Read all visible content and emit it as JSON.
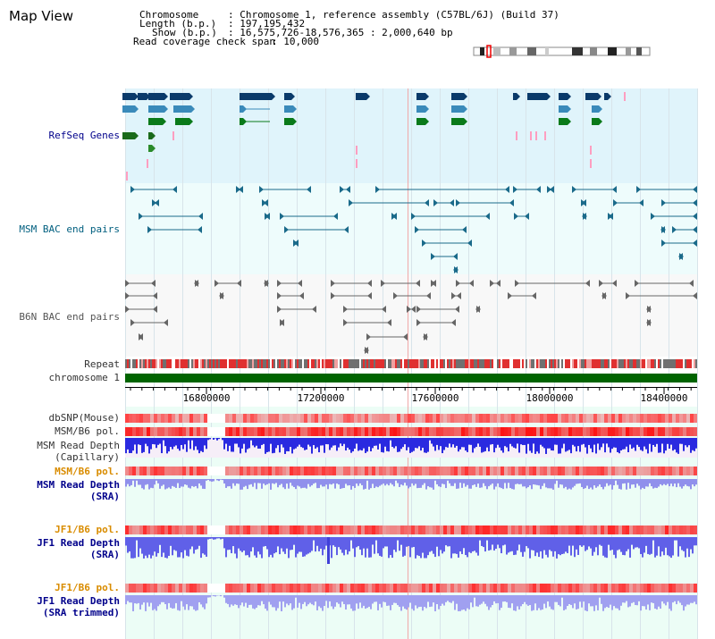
{
  "title": "Map View",
  "info": {
    "chromosome_label": "Chromosome",
    "chromosome_value": ": Chromosome 1, reference assembly (C57BL/6J) (Build 37)",
    "length_label": "Length (b.p.)",
    "length_value": ": 197,195,432",
    "show_label": "Show (b.p.)",
    "show_value": ": 16,575,726-18,576,365 : 2,000,640 bp",
    "coverage_label": "Read coverage check span",
    "coverage_value": ": 10,000"
  },
  "tracks": {
    "refseq": "RefSeq Genes",
    "msm_bac": "MSM BAC end pairs",
    "b6n_bac": "B6N BAC end pairs",
    "repeat": "Repeat",
    "chromosome": "chromosome 1",
    "dbsnp": "dbSNP(Mouse)",
    "msm_b6_pol_1": "MSM/B6 pol.",
    "msm_read_depth_cap_1": "MSM Read Depth",
    "msm_read_depth_cap_2": "(Capillary)",
    "msm_b6_pol_2": "MSM/B6 pol.",
    "msm_read_depth_sra_1": "MSM Read Depth",
    "msm_read_depth_sra_2": "(SRA)",
    "jf1_b6_pol_1": "JF1/B6 pol.",
    "jf1_read_depth_sra_1": "JF1 Read Depth",
    "jf1_read_depth_sra_2": "(SRA)",
    "jf1_b6_pol_2": "JF1/B6 pol.",
    "jf1_read_depth_trim_1": "JF1 Read Depth",
    "jf1_read_depth_trim_2": "(SRA trimmed)"
  },
  "ruler": {
    "ticks": [
      "16800000",
      "17200000",
      "17600000",
      "18000000",
      "18400000"
    ]
  },
  "colors": {
    "refseq_bg": "#e0f4fb",
    "msm_bg": "#eefcfc",
    "b6n_bg": "#f8f8f8",
    "lower_bg": "#ecfdf6",
    "chromosome_bar": "#006400",
    "depth_blue": "#2020e0",
    "depth_light": "#8080ee",
    "pol_red": "#e02020"
  }
}
